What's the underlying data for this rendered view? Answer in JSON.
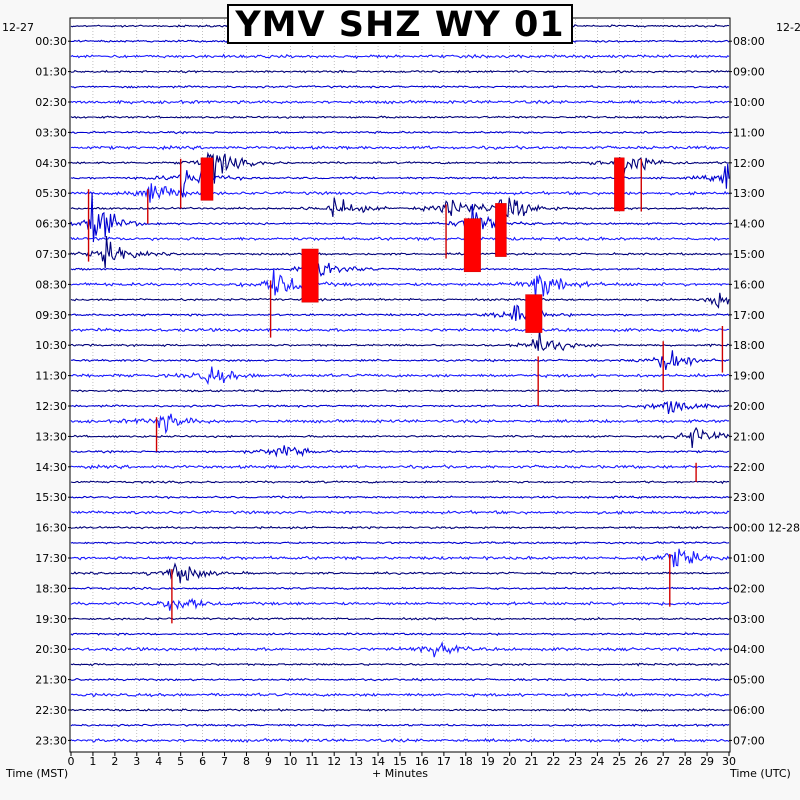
{
  "chart_data": {
    "type": "helicorder",
    "title": "YMV SHZ WY 01",
    "xlabel": "+ Minutes",
    "left_axis_label": "Time (MST)",
    "right_axis_label": "Time (UTC)",
    "left_date": "12-27",
    "right_date": "12-2",
    "right_date_change": "12-28",
    "x_ticks": [
      0,
      1,
      2,
      3,
      4,
      5,
      6,
      7,
      8,
      9,
      10,
      11,
      12,
      13,
      14,
      15,
      16,
      17,
      18,
      19,
      20,
      21,
      22,
      23,
      24,
      25,
      26,
      27,
      28,
      29,
      30
    ],
    "xlim": [
      0,
      30
    ],
    "left_time_labels": [
      "00:30",
      "01:30",
      "02:30",
      "03:30",
      "04:30",
      "05:30",
      "06:30",
      "07:30",
      "08:30",
      "09:30",
      "10:30",
      "11:30",
      "12:30",
      "13:30",
      "14:30",
      "15:30",
      "16:30",
      "17:30",
      "18:30",
      "19:30",
      "20:30",
      "21:30",
      "22:30",
      "23:30"
    ],
    "right_time_labels": [
      "08:00",
      "09:00",
      "10:00",
      "11:00",
      "12:00",
      "13:00",
      "14:00",
      "15:00",
      "16:00",
      "17:00",
      "18:00",
      "19:00",
      "20:00",
      "21:00",
      "22:00",
      "23:00",
      "00:00",
      "01:00",
      "02:00",
      "03:00",
      "04:00",
      "05:00",
      "06:00",
      "07:00"
    ],
    "trace_count": 48,
    "trace_colors": [
      "#00007a",
      "#0000d0",
      "#1a1aff"
    ],
    "clip_color": "#ff0000",
    "events": [
      {
        "row": 9,
        "minute": 6.2,
        "amp": 2.2
      },
      {
        "row": 9,
        "minute": 25.0,
        "amp": 2.2
      },
      {
        "row": 10,
        "minute": 5.0,
        "amp": 1.6
      },
      {
        "row": 10,
        "minute": 29.8,
        "amp": 1.6
      },
      {
        "row": 11,
        "minute": 3.5,
        "amp": 1.3
      },
      {
        "row": 12,
        "minute": 12.0,
        "amp": 0.9
      },
      {
        "row": 12,
        "minute": 17.2,
        "amp": 1.3
      },
      {
        "row": 12,
        "minute": 19.6,
        "amp": 2.0
      },
      {
        "row": 13,
        "minute": 0.9,
        "amp": 2.4
      },
      {
        "row": 13,
        "minute": 18.1,
        "amp": 2.0
      },
      {
        "row": 15,
        "minute": 1.5,
        "amp": 1.3
      },
      {
        "row": 16,
        "minute": 11.0,
        "amp": 1.8
      },
      {
        "row": 17,
        "minute": 9.2,
        "amp": 1.6
      },
      {
        "row": 17,
        "minute": 21.1,
        "amp": 2.2
      },
      {
        "row": 18,
        "minute": 29.5,
        "amp": 1.5
      },
      {
        "row": 19,
        "minute": 20.2,
        "amp": 1.2
      },
      {
        "row": 21,
        "minute": 21.2,
        "amp": 1.3
      },
      {
        "row": 22,
        "minute": 27.0,
        "amp": 1.4
      },
      {
        "row": 23,
        "minute": 6.3,
        "amp": 0.8
      },
      {
        "row": 25,
        "minute": 27.2,
        "amp": 0.9
      },
      {
        "row": 26,
        "minute": 4.0,
        "amp": 0.9
      },
      {
        "row": 27,
        "minute": 28.3,
        "amp": 1.0
      },
      {
        "row": 28,
        "minute": 9.5,
        "amp": 0.6
      },
      {
        "row": 35,
        "minute": 27.3,
        "amp": 1.2
      },
      {
        "row": 36,
        "minute": 4.6,
        "amp": 1.4
      },
      {
        "row": 38,
        "minute": 4.6,
        "amp": 0.7
      },
      {
        "row": 41,
        "minute": 16.5,
        "amp": 0.4
      }
    ],
    "clipped": [
      {
        "row": 9,
        "minute": 6.2,
        "width": 0.55,
        "rows_span": 2.8
      },
      {
        "row": 9,
        "minute": 25.0,
        "width": 0.45,
        "rows_span": 3.5
      },
      {
        "row": 13,
        "minute": 18.3,
        "width": 0.75,
        "rows_span": 3.5
      },
      {
        "row": 12,
        "minute": 19.6,
        "width": 0.5,
        "rows_span": 3.5
      },
      {
        "row": 15,
        "minute": 10.9,
        "width": 0.75,
        "rows_span": 3.5
      },
      {
        "row": 18,
        "minute": 21.1,
        "width": 0.75,
        "rows_span": 2.5
      }
    ],
    "spikes": [
      {
        "row": 11,
        "minute": 0.8,
        "rows_span": 4.5
      },
      {
        "row": 11,
        "minute": 3.5,
        "rows_span": 2.0
      },
      {
        "row": 9,
        "minute": 5.0,
        "rows_span": 3.0
      },
      {
        "row": 12,
        "minute": 17.1,
        "rows_span": 3.3
      },
      {
        "row": 17,
        "minute": 9.1,
        "rows_span": 3.5
      },
      {
        "row": 22,
        "minute": 21.3,
        "rows_span": 3.0
      },
      {
        "row": 21,
        "minute": 27.0,
        "rows_span": 3.0
      },
      {
        "row": 9,
        "minute": 26.0,
        "rows_span": 3.2
      },
      {
        "row": 20,
        "minute": 29.7,
        "rows_span": 2.8
      },
      {
        "row": 36,
        "minute": 4.6,
        "rows_span": 3.3
      },
      {
        "row": 35,
        "minute": 27.3,
        "rows_span": 3.2
      },
      {
        "row": 26,
        "minute": 3.9,
        "rows_span": 2.0
      },
      {
        "row": 29,
        "minute": 28.5,
        "rows_span": 1.0
      }
    ]
  }
}
